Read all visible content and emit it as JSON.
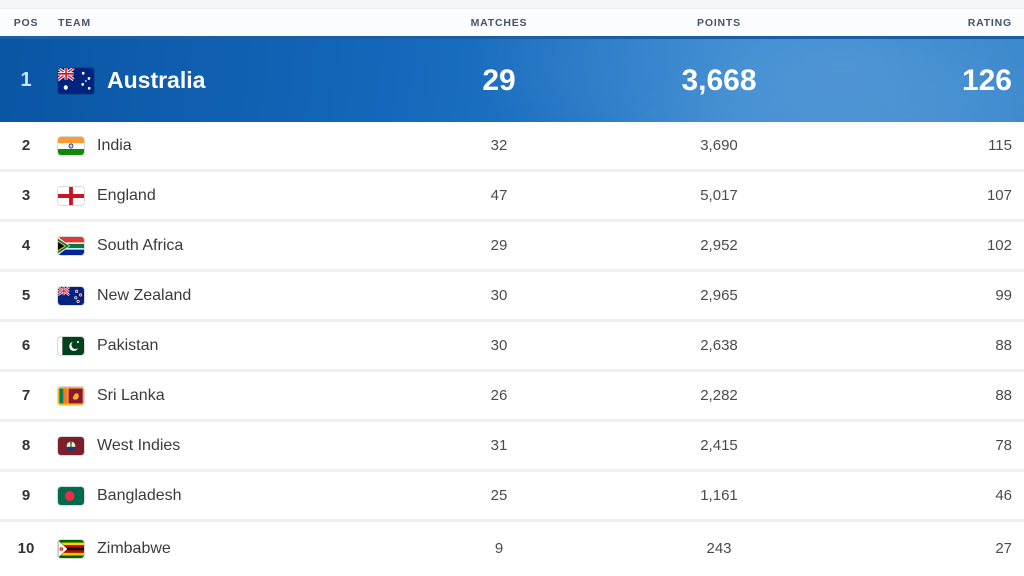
{
  "table": {
    "columns": [
      {
        "key": "pos",
        "label": "POS"
      },
      {
        "key": "team",
        "label": "TEAM"
      },
      {
        "key": "matches",
        "label": "MATCHES"
      },
      {
        "key": "points",
        "label": "POINTS"
      },
      {
        "key": "rating",
        "label": "RATING"
      }
    ],
    "rows": [
      {
        "pos": "1",
        "team": "Australia",
        "flag": "australia",
        "matches": "29",
        "points": "3,668",
        "rating": "126",
        "highlighted": true
      },
      {
        "pos": "2",
        "team": "India",
        "flag": "india",
        "matches": "32",
        "points": "3,690",
        "rating": "115"
      },
      {
        "pos": "3",
        "team": "England",
        "flag": "england",
        "matches": "47",
        "points": "5,017",
        "rating": "107"
      },
      {
        "pos": "4",
        "team": "South Africa",
        "flag": "south-africa",
        "matches": "29",
        "points": "2,952",
        "rating": "102"
      },
      {
        "pos": "5",
        "team": "New Zealand",
        "flag": "new-zealand",
        "matches": "30",
        "points": "2,965",
        "rating": "99"
      },
      {
        "pos": "6",
        "team": "Pakistan",
        "flag": "pakistan",
        "matches": "30",
        "points": "2,638",
        "rating": "88"
      },
      {
        "pos": "7",
        "team": "Sri Lanka",
        "flag": "sri-lanka",
        "matches": "26",
        "points": "2,282",
        "rating": "88"
      },
      {
        "pos": "8",
        "team": "West Indies",
        "flag": "west-indies",
        "matches": "31",
        "points": "2,415",
        "rating": "78"
      },
      {
        "pos": "9",
        "team": "Bangladesh",
        "flag": "bangladesh",
        "matches": "25",
        "points": "1,161",
        "rating": "46"
      },
      {
        "pos": "10",
        "team": "Zimbabwe",
        "flag": "zimbabwe",
        "matches": "9",
        "points": "243",
        "rating": "27"
      }
    ]
  },
  "colors": {
    "highlight_gradient_start": "#0a55a4",
    "highlight_gradient_end": "#2a7ec9",
    "highlight_text": "#ffffff",
    "highlight_pos_text": "#c9e5fb",
    "header_text": "#45536b",
    "row_text": "#3b3b3b",
    "separator": "#edeff2"
  }
}
